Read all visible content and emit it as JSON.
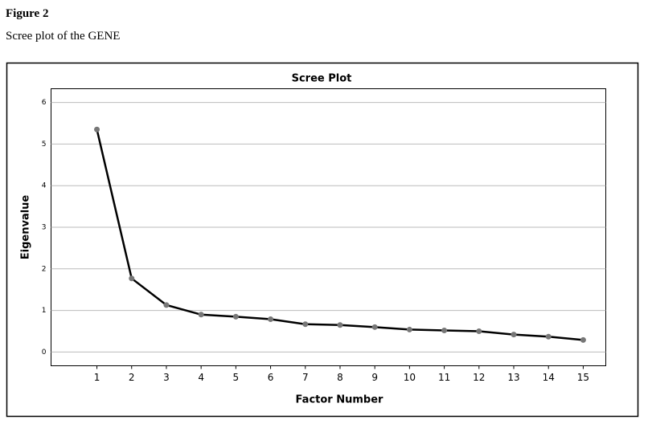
{
  "figure": {
    "label": "Figure 2",
    "caption": "Scree plot of the GENE"
  },
  "chart_data": {
    "type": "line",
    "title": "Scree Plot",
    "x_label": "Factor Number",
    "y_label": "Eigenvalue",
    "x": [
      1,
      2,
      3,
      4,
      5,
      6,
      7,
      8,
      9,
      10,
      11,
      12,
      13,
      14,
      15
    ],
    "series": [
      {
        "color": "#000000",
        "marker_color": "#777777",
        "values": [
          5.35,
          1.77,
          1.13,
          0.9,
          0.85,
          0.79,
          0.67,
          0.65,
          0.6,
          0.54,
          0.52,
          0.5,
          0.42,
          0.37,
          0.29
        ]
      }
    ],
    "xlim": [
      -0.32,
      15.65
    ],
    "xticks": [
      1,
      2,
      3,
      4,
      5,
      6,
      7,
      8,
      9,
      10,
      11,
      12,
      13,
      14,
      15
    ],
    "ylim": [
      -0.33,
      6.33
    ],
    "yticks": [
      0,
      1,
      2,
      3,
      4,
      5,
      6
    ],
    "grid": true
  }
}
